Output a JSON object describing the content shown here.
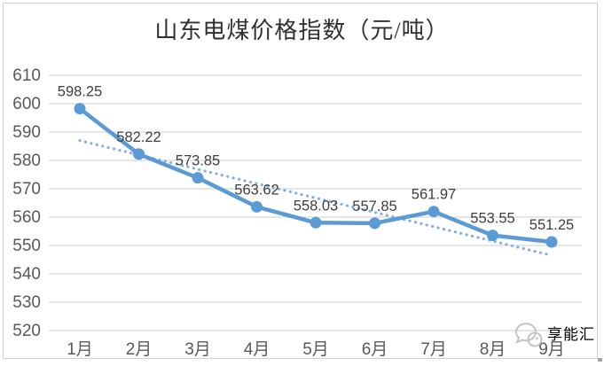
{
  "chart_data": {
    "type": "line",
    "title": "山东电煤价格指数（元/吨）",
    "categories": [
      "1月",
      "2月",
      "3月",
      "4月",
      "5月",
      "6月",
      "7月",
      "8月",
      "9月"
    ],
    "series": [
      {
        "values": [
          598.25,
          582.22,
          573.85,
          563.62,
          558.03,
          557.85,
          561.97,
          553.55,
          551.25
        ],
        "data_labels": [
          "598.25",
          "582.22",
          "573.85",
          "563.62",
          "558.03",
          "557.85",
          "561.97",
          "553.55",
          "551.25"
        ],
        "color": "#5b9bd5",
        "marker": "circle"
      }
    ],
    "trendline": {
      "type": "linear",
      "style": "dotted",
      "color": "#7fb0e0",
      "start_value": 587,
      "end_value": 546.5
    },
    "ylim": [
      520,
      610
    ],
    "yticks": [
      610,
      600,
      590,
      580,
      570,
      560,
      550,
      540,
      530,
      520
    ],
    "grid": "horizontal",
    "legend": "none",
    "gridline_color": "#d6d6d6",
    "axis_label_color": "#595959",
    "data_label_color": "#3f3f3f",
    "title_color": "#303030"
  },
  "watermark": {
    "text": "享能汇",
    "icon": "chat-bubble-smiley-icon",
    "color": "#b3b3b3"
  }
}
